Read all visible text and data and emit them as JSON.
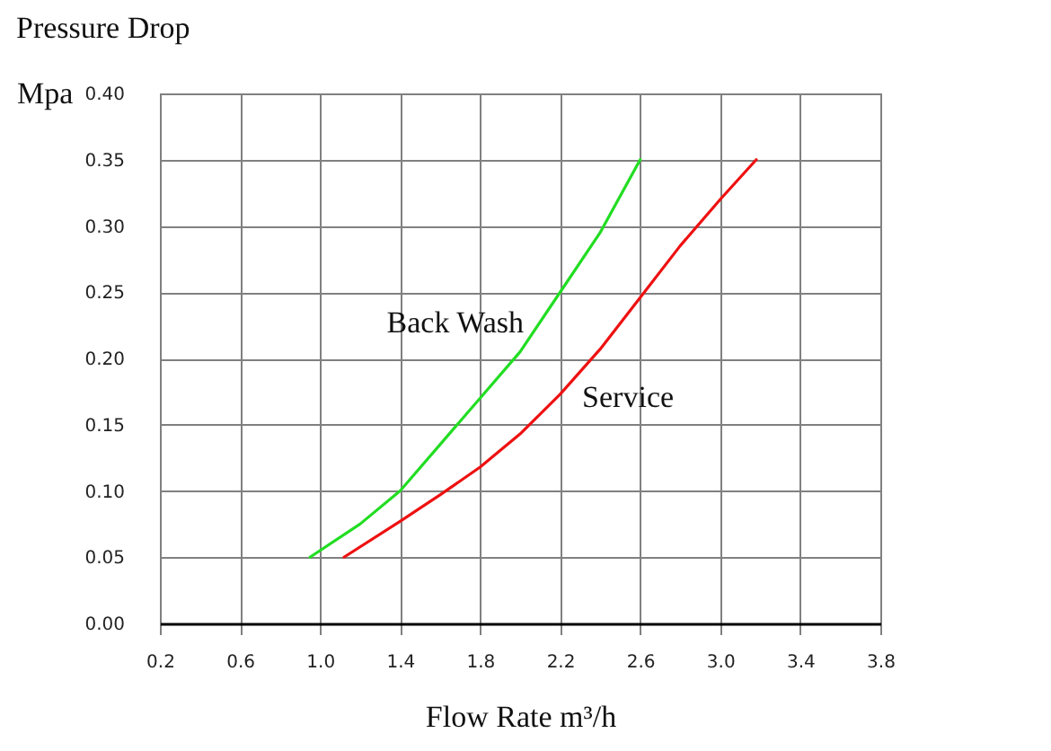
{
  "chart_data": {
    "type": "line",
    "title": "Pressure Drop",
    "ylabel": "Mpa",
    "xlabel": "Flow Rate m³/h",
    "xlim": [
      0.2,
      3.8
    ],
    "xticks": [
      {
        "value": 0.2,
        "label": "0.2"
      },
      {
        "value": 0.6,
        "label": "0.6"
      },
      {
        "value": 1.0,
        "label": "1.0"
      },
      {
        "value": 1.4,
        "label": "1.4"
      },
      {
        "value": 1.8,
        "label": "1.8"
      },
      {
        "value": 2.2,
        "label": "2.2"
      },
      {
        "value": 2.6,
        "label": "2.6"
      },
      {
        "value": 3.0,
        "label": "3.0"
      },
      {
        "value": 3.4,
        "label": "3.4"
      },
      {
        "value": 3.8,
        "label": "3.8"
      }
    ],
    "ylim": [
      0,
      0.4
    ],
    "yticks": [
      {
        "value": 0,
        "label": "0.00"
      },
      {
        "value": 0.05,
        "label": "0.05"
      },
      {
        "value": 0.1,
        "label": "0.10"
      },
      {
        "value": 0.15,
        "label": "0.15"
      },
      {
        "value": 0.2,
        "label": "0.20"
      },
      {
        "value": 0.25,
        "label": "0.25"
      },
      {
        "value": 0.3,
        "label": "0.30"
      },
      {
        "value": 0.35,
        "label": "0.35"
      },
      {
        "value": 0.4,
        "label": "0.40"
      }
    ],
    "grid": true,
    "legend": false,
    "marker": "none",
    "line_style": "solid",
    "series": [
      {
        "name": "Back Wash",
        "color": "#22dd22",
        "x": [
          0.95,
          1.2,
          1.4,
          1.6,
          1.8,
          2.0,
          2.2,
          2.4,
          2.6
        ],
        "values": [
          0.05,
          0.075,
          0.1,
          0.135,
          0.17,
          0.205,
          0.25,
          0.295,
          0.35
        ]
      },
      {
        "name": "Service",
        "color": "#ee1111",
        "x": [
          1.12,
          1.4,
          1.6,
          1.8,
          2.0,
          2.2,
          2.4,
          2.6,
          2.8,
          3.0,
          3.18
        ],
        "values": [
          0.05,
          0.077,
          0.097,
          0.118,
          0.143,
          0.173,
          0.207,
          0.246,
          0.285,
          0.32,
          0.35
        ]
      }
    ]
  }
}
